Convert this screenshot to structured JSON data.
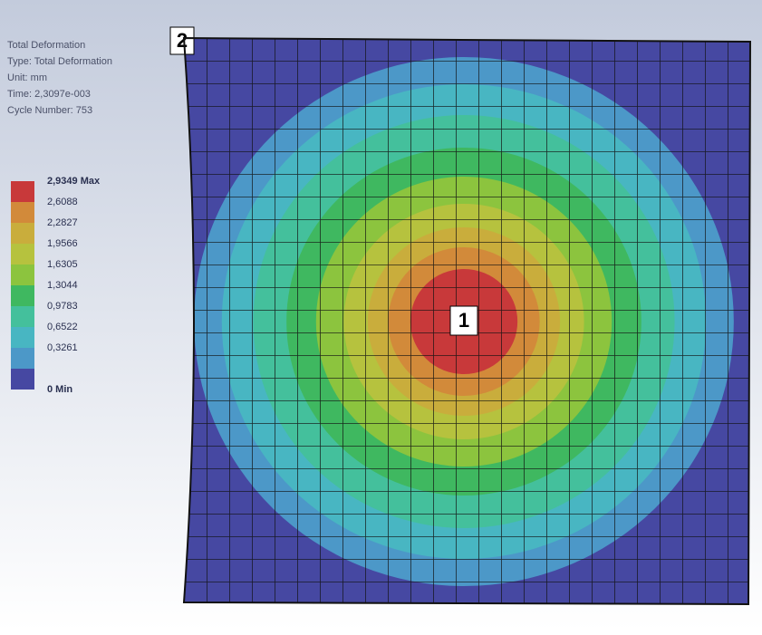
{
  "info": {
    "title": "Total Deformation",
    "type": "Type: Total Deformation",
    "unit": "Unit: mm",
    "time": "Time: 2,3097e-003",
    "cycle": "Cycle Number: 753"
  },
  "legend": {
    "items": [
      {
        "label": "2,9349 Max",
        "color": "#c8393a"
      },
      {
        "label": "2,6088",
        "color": "#d28a3a"
      },
      {
        "label": "2,2827",
        "color": "#c9ad3c"
      },
      {
        "label": "1,9566",
        "color": "#b6c23e"
      },
      {
        "label": "1,6305",
        "color": "#8cc43e"
      },
      {
        "label": "1,3044",
        "color": "#3fb860"
      },
      {
        "label": "0,9783",
        "color": "#44c09c"
      },
      {
        "label": "0,6522",
        "color": "#48b6c2"
      },
      {
        "label": "0,3261",
        "color": "#4c98c8"
      },
      {
        "label": "0 Min",
        "color": "#4648a2"
      }
    ]
  },
  "callouts": [
    "1",
    "2"
  ]
}
